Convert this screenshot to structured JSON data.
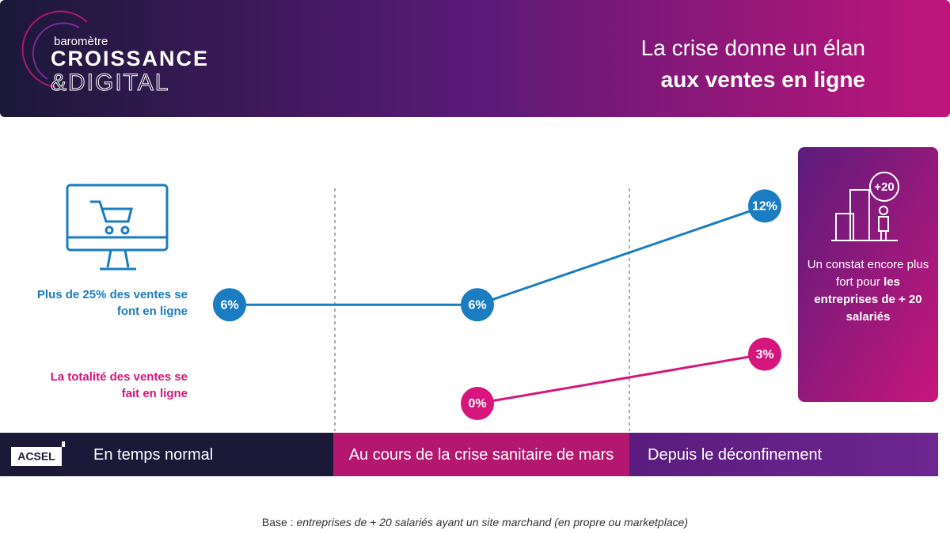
{
  "header": {
    "logo": {
      "small": "baromètre",
      "line1": "CROISSANCE",
      "line2": "&DIGITAL"
    },
    "title": [
      "La crise donne un élan",
      "aux ventes en ligne"
    ]
  },
  "chart_data": {
    "type": "line",
    "categories": [
      "En temps normal",
      "Au cours de la crise sanitaire de mars",
      "Depuis le déconfinement"
    ],
    "series": [
      {
        "name": "Plus de 25% des ventes se font en ligne",
        "color": "#1a7cc1",
        "values": [
          6,
          6,
          12
        ],
        "value_labels": [
          "6%",
          "6%",
          "12%"
        ]
      },
      {
        "name": "La totalité des ventes se fait en ligne",
        "color": "#d6157d",
        "values": [
          null,
          0,
          3
        ],
        "value_labels": [
          null,
          "0%",
          "3%"
        ]
      }
    ]
  },
  "side_note": {
    "badge": "+20",
    "text": "Un constat encore plus fort pour ",
    "bold": "les entreprises de + 20 salariés"
  },
  "footer": {
    "brand": "ACSEL",
    "note_label": "Base :",
    "note_text": "entreprises de + 20 salariés ayant un site marchand (en propre ou marketplace)"
  }
}
